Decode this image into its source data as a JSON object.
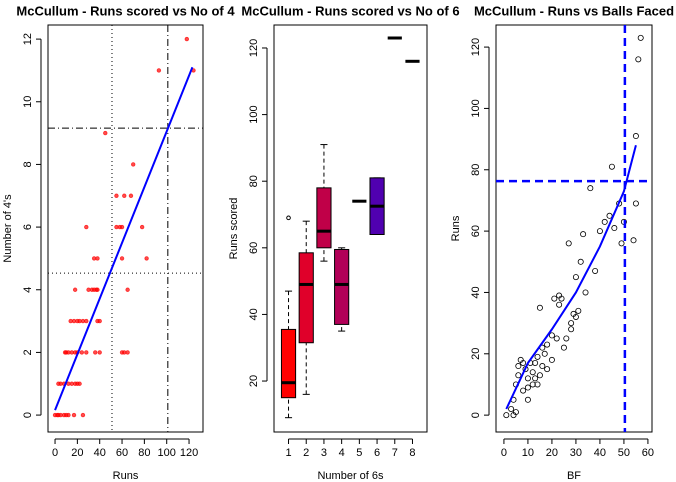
{
  "chart_data": [
    {
      "type": "scatter",
      "title": "McCullum - Runs scored vs No of 4",
      "xlabel": "Runs",
      "ylabel": "Number of 4's",
      "xlim": [
        -6.3,
        132.5
      ],
      "ylim": [
        -0.54,
        12.45
      ],
      "xticks": [
        0,
        20,
        40,
        60,
        80,
        100,
        120
      ],
      "yticks": [
        0,
        2,
        4,
        6,
        8,
        10,
        12
      ],
      "color": "#ff0000",
      "x": [
        0,
        2,
        3,
        5,
        8,
        10,
        12,
        17,
        25,
        3,
        5,
        8,
        12,
        15,
        18,
        20,
        22,
        9,
        10,
        12,
        15,
        18,
        20,
        24,
        28,
        36,
        40,
        60,
        62,
        65,
        14,
        17,
        20,
        22,
        25,
        28,
        38,
        40,
        18,
        30,
        33,
        35,
        37,
        38,
        65,
        35,
        38,
        60,
        82,
        28,
        55,
        58,
        60,
        78,
        55,
        68,
        62,
        70,
        45,
        93,
        118,
        124
      ],
      "y": [
        0,
        0,
        0,
        0,
        0,
        0,
        0,
        0,
        0,
        1,
        1,
        1,
        1,
        1,
        1,
        1,
        1,
        2,
        2,
        2,
        2,
        2,
        2,
        2,
        2,
        2,
        2,
        2,
        2,
        2,
        3,
        3,
        3,
        3,
        3,
        3,
        3,
        3,
        4,
        4,
        4,
        4,
        4,
        4,
        4,
        5,
        5,
        5,
        5,
        6,
        6,
        6,
        6,
        6,
        7,
        7,
        7,
        8,
        9,
        11,
        12,
        11
      ],
      "fit": {
        "color": "#0000ff",
        "x": [
          0,
          123
        ],
        "y": [
          0.16,
          11.1
        ]
      },
      "vlines": [
        {
          "value": 51,
          "style": "dotted",
          "color": "#000000"
        },
        {
          "value": 101,
          "style": "dashdot",
          "color": "#000000"
        }
      ],
      "hlines": [
        {
          "value": 9.16,
          "style": "dashdot",
          "color": "#000000"
        },
        {
          "value": 4.53,
          "style": "dotted",
          "color": "#000000"
        }
      ]
    },
    {
      "type": "boxplot",
      "title": "McCullum - Runs scored vs No of 6",
      "xlabel": "Number of 6s",
      "ylabel": "Runs scored",
      "categories": [
        "1",
        "2",
        "3",
        "4",
        "5",
        "6",
        "7",
        "8"
      ],
      "ylim": [
        4.7,
        126.9
      ],
      "yticks": [
        20,
        40,
        60,
        80,
        100,
        120
      ],
      "colors": [
        "#ff0000",
        "#e0002a",
        "#c00048",
        "#b20058",
        "#a0006a",
        "#5000b0",
        "#4000c0",
        "#2000e0"
      ],
      "boxes": [
        {
          "min": 9,
          "q1": 15,
          "median": 19.5,
          "q3": 35.5,
          "max": 47,
          "outliers": [
            69
          ]
        },
        {
          "min": 16,
          "q1": 31.5,
          "median": 49,
          "q3": 58.5,
          "max": 68,
          "outliers": []
        },
        {
          "min": 56,
          "q1": 60,
          "median": 65,
          "q3": 78,
          "max": 91,
          "outliers": []
        },
        {
          "min": 35,
          "q1": 37,
          "median": 49,
          "q3": 59.5,
          "max": 60,
          "outliers": []
        },
        {
          "min": 74,
          "q1": 74,
          "median": 74,
          "q3": 74,
          "max": 74,
          "outliers": []
        },
        {
          "min": 64,
          "q1": 64,
          "median": 72.5,
          "q3": 81,
          "max": 81,
          "outliers": []
        },
        {
          "min": 123,
          "q1": 123,
          "median": 123,
          "q3": 123,
          "max": 123,
          "outliers": []
        },
        {
          "min": 116,
          "q1": 116,
          "median": 116,
          "q3": 116,
          "max": 116,
          "outliers": []
        }
      ]
    },
    {
      "type": "scatter",
      "title": "McCullum - Runs vs Balls Faced",
      "xlabel": "BF",
      "ylabel": "Runs",
      "xlim": [
        -3.3,
        61.7
      ],
      "ylim": [
        -5.5,
        127.2
      ],
      "xticks": [
        0,
        10,
        20,
        30,
        40,
        50,
        60
      ],
      "yticks": [
        0,
        20,
        40,
        60,
        80,
        100,
        120
      ],
      "color": "#000000",
      "open": true,
      "x": [
        1,
        3,
        4,
        5,
        4,
        5,
        6,
        6,
        7,
        8,
        8,
        9,
        10,
        10,
        10,
        11,
        12,
        12,
        13,
        13,
        14,
        14,
        15,
        15,
        16,
        16,
        17,
        18,
        18,
        20,
        20,
        21,
        22,
        23,
        23,
        24,
        25,
        26,
        27,
        28,
        28,
        29,
        30,
        30,
        31,
        32,
        33,
        34,
        36,
        38,
        40,
        42,
        44,
        45,
        46,
        48,
        49,
        50,
        54,
        55,
        55,
        56,
        57
      ],
      "y": [
        0,
        2,
        0,
        1,
        5,
        10,
        13,
        16,
        18,
        8,
        17,
        15,
        5,
        12,
        9,
        17,
        10,
        14,
        12,
        17,
        19,
        10,
        35,
        13,
        22,
        16,
        20,
        23,
        15,
        26,
        18,
        38,
        25,
        39,
        36,
        38,
        22,
        25,
        56,
        28,
        30,
        33,
        45,
        32,
        34,
        50,
        59,
        40,
        74,
        47,
        60,
        63,
        65,
        81,
        61,
        69,
        56,
        63,
        57,
        91,
        69,
        116,
        123
      ],
      "fit": {
        "color": "#0000ff",
        "x": [
          1,
          10,
          20,
          30,
          40,
          50,
          55
        ],
        "y": [
          2,
          17,
          28,
          40,
          55,
          73,
          88
        ]
      },
      "vlines": [
        {
          "value": 50.4,
          "style": "dashed",
          "color": "#0000ff"
        }
      ],
      "hlines": [
        {
          "value": 76.3,
          "style": "dashed",
          "color": "#0000ff"
        }
      ]
    }
  ]
}
